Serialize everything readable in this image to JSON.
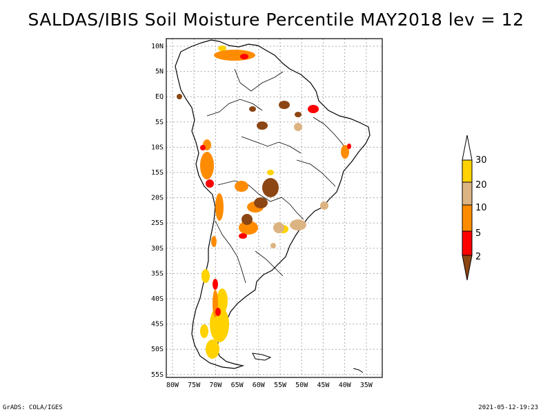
{
  "title": "SALDAS/IBIS Soil Moisture Percentile MAY2018 lev = 12",
  "latitude_ticks": [
    "10N",
    "5N",
    "EQ",
    "5S",
    "10S",
    "15S",
    "20S",
    "25S",
    "30S",
    "35S",
    "40S",
    "45S",
    "50S",
    "55S"
  ],
  "longitude_ticks": [
    "80W",
    "75W",
    "70W",
    "65W",
    "60W",
    "55W",
    "50W",
    "45W",
    "40W",
    "35W"
  ],
  "colorbar": {
    "labels": [
      "30",
      "20",
      "10",
      "5",
      "2"
    ],
    "colors": {
      "above_30": "#ffffff",
      "20_30": "#ffd200",
      "10_20": "#dcb482",
      "5_10": "#ff8c00",
      "2_5": "#ff0000",
      "below_2": "#8c4614"
    }
  },
  "footer": {
    "left": "GrADS: COLA/IGES",
    "right": "2021-05-12-19:23"
  }
}
